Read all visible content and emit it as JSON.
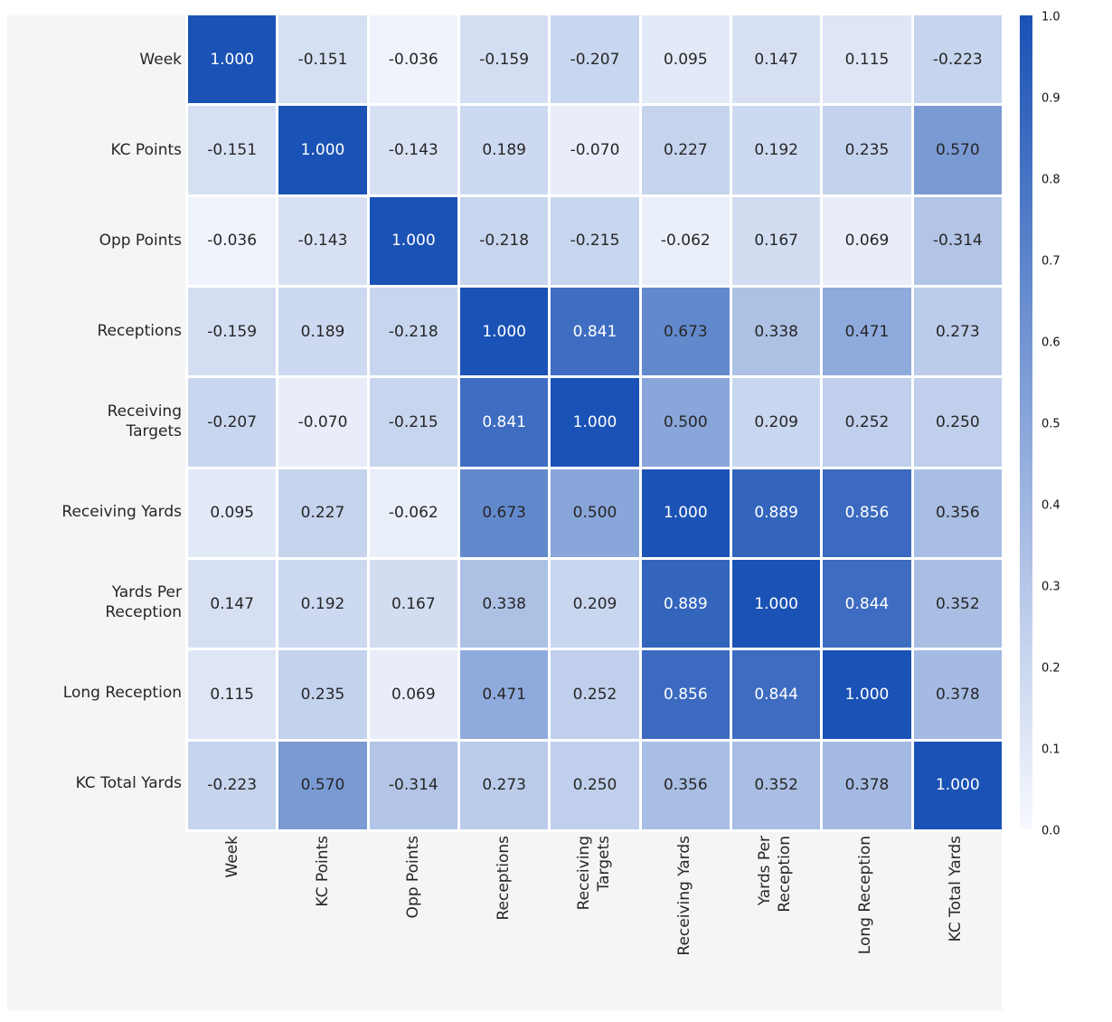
{
  "chart_data": {
    "type": "heatmap",
    "title": "",
    "row_labels": [
      "Week",
      "KC Points",
      "Opp Points",
      "Receptions",
      "Receiving\nTargets",
      "Receiving Yards",
      "Yards Per\nReception",
      "Long Reception",
      "KC Total Yards"
    ],
    "col_labels": [
      "Week",
      "KC Points",
      "Opp Points",
      "Receptions",
      "Receiving\nTargets",
      "Receiving Yards",
      "Yards Per\nReception",
      "Long Reception",
      "KC Total Yards"
    ],
    "matrix": [
      [
        1.0,
        -0.151,
        -0.036,
        -0.159,
        -0.207,
        0.095,
        0.147,
        0.115,
        -0.223
      ],
      [
        -0.151,
        1.0,
        -0.143,
        0.189,
        -0.07,
        0.227,
        0.192,
        0.235,
        0.57
      ],
      [
        -0.036,
        -0.143,
        1.0,
        -0.218,
        -0.215,
        -0.062,
        0.167,
        0.069,
        -0.314
      ],
      [
        -0.159,
        0.189,
        -0.218,
        1.0,
        0.841,
        0.673,
        0.338,
        0.471,
        0.273
      ],
      [
        -0.207,
        -0.07,
        -0.215,
        0.841,
        1.0,
        0.5,
        0.209,
        0.252,
        0.25
      ],
      [
        0.095,
        0.227,
        -0.062,
        0.673,
        0.5,
        1.0,
        0.889,
        0.856,
        0.356
      ],
      [
        0.147,
        0.192,
        0.167,
        0.338,
        0.209,
        0.889,
        1.0,
        0.844,
        0.352
      ],
      [
        0.115,
        0.235,
        0.069,
        0.471,
        0.252,
        0.856,
        0.844,
        1.0,
        0.378
      ],
      [
        -0.223,
        0.57,
        -0.314,
        0.273,
        0.25,
        0.356,
        0.352,
        0.378,
        1.0
      ]
    ],
    "value_format": "3dp",
    "color_by": "absolute_value",
    "white_text_threshold": 0.8,
    "colorbar": {
      "position": "right",
      "vmin": 0.0,
      "vmax": 1.0,
      "ticks": [
        "1.0",
        "0.9",
        "0.8",
        "0.7",
        "0.6",
        "0.5",
        "0.4",
        "0.3",
        "0.2",
        "0.1",
        "0.0"
      ]
    },
    "colors": {
      "low": "#f7f9fe",
      "high": "#1b52b5",
      "panel": "#f5f5f6",
      "background": "#ffffff",
      "cell_gap": "#ffffff",
      "value_text_dark": "#262626",
      "value_text_light": "#ffffff",
      "tick_text": "#111111"
    },
    "grid": false,
    "legend_position": "right-colorbar"
  }
}
